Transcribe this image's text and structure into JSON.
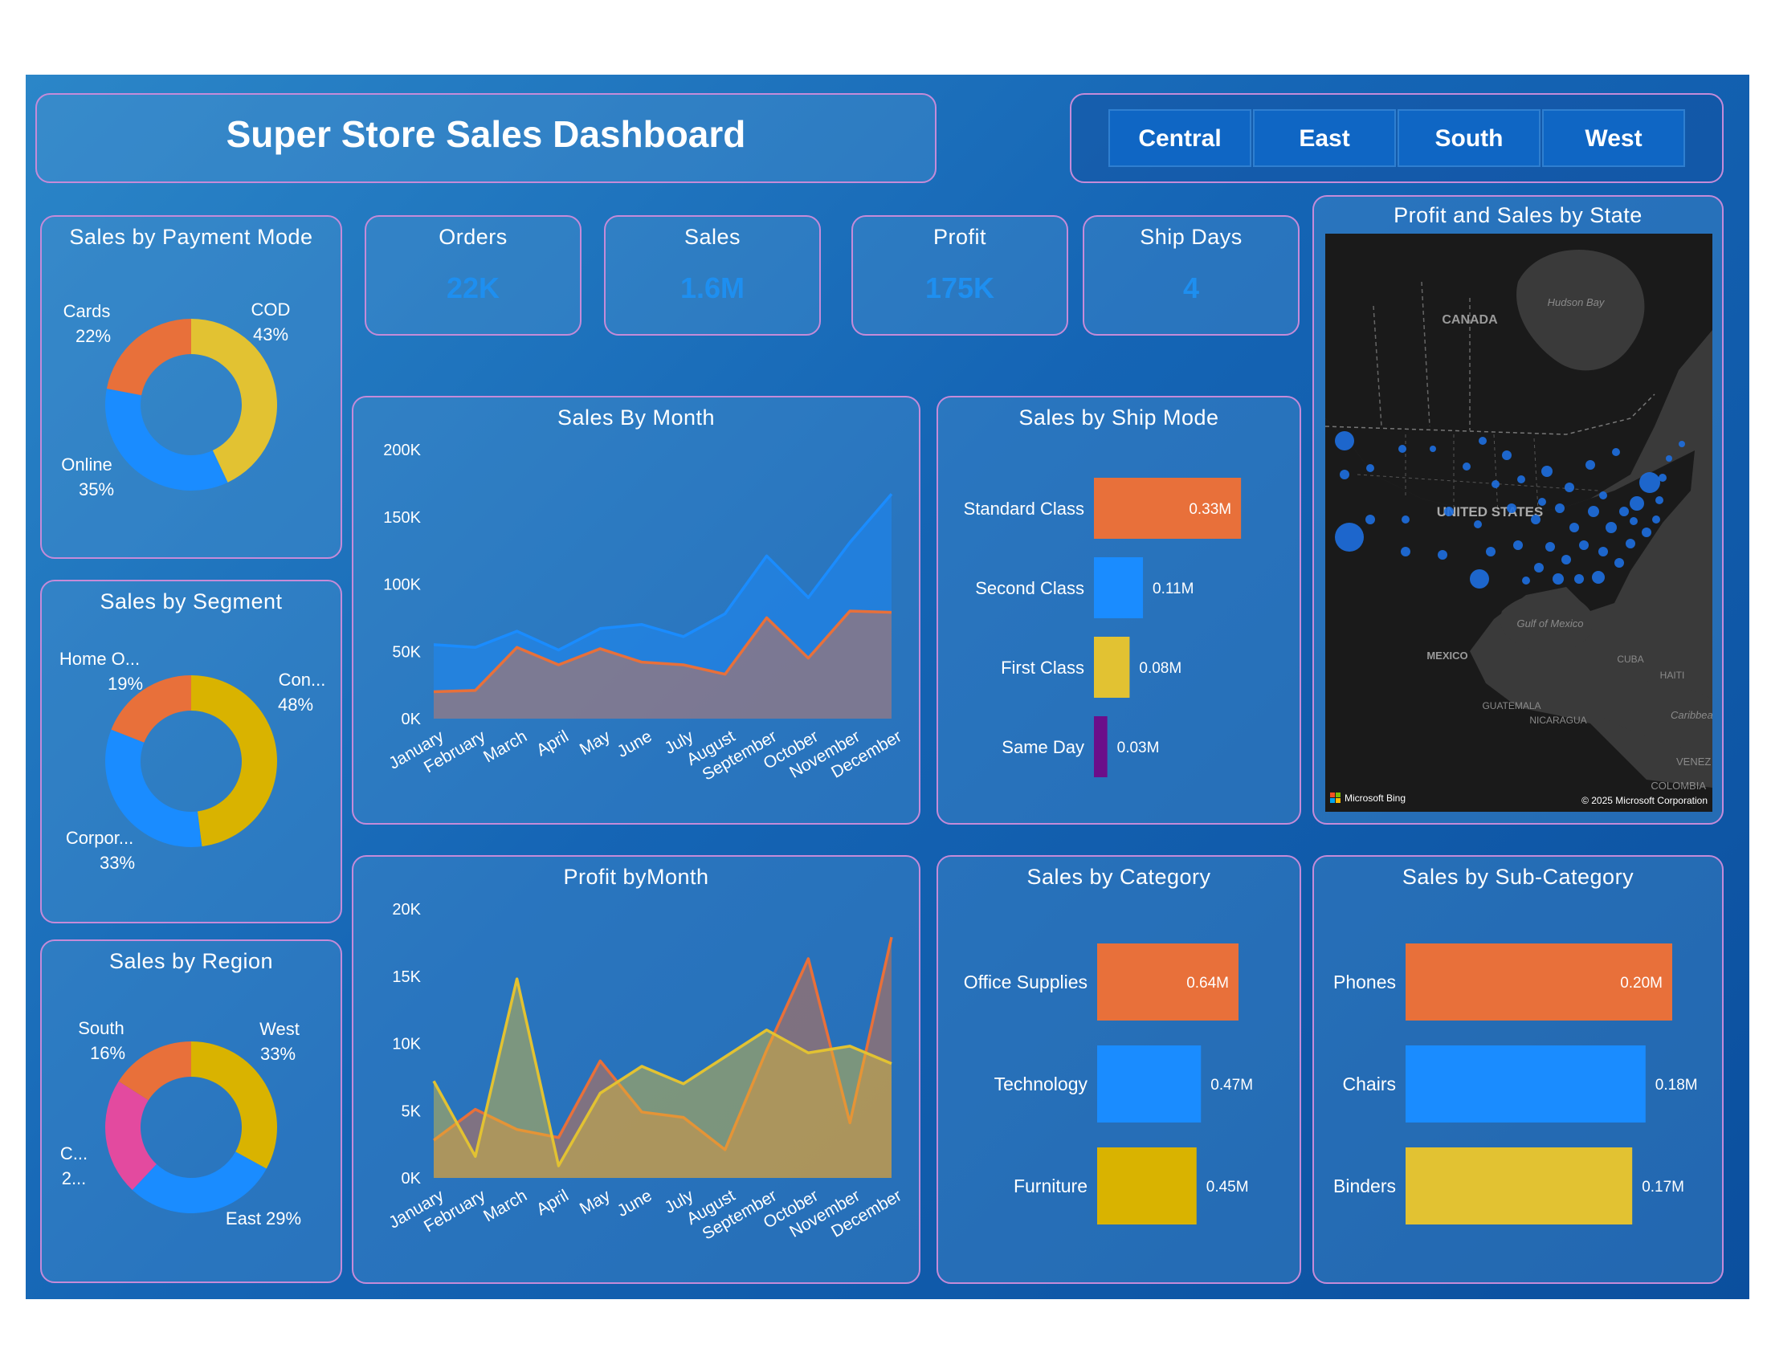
{
  "dashboard": {
    "title": "Super Store Sales Dashboard",
    "colors": {
      "orange": "#e8703a",
      "blue": "#1a8cff",
      "gold": "#d9b300",
      "yellow": "#e2c232",
      "pink": "#e34a9f",
      "purple": "#6b0e8a",
      "border": "#c58bd9"
    }
  },
  "slicer": {
    "regions": [
      "Central",
      "East",
      "South",
      "West"
    ]
  },
  "kpis": [
    {
      "label": "Orders",
      "value": "22K"
    },
    {
      "label": "Sales",
      "value": "1.6M"
    },
    {
      "label": "Profit",
      "value": "175K"
    },
    {
      "label": "Ship Days",
      "value": "4"
    }
  ],
  "payment_mode": {
    "title": "Sales by Payment Mode",
    "labels": [
      {
        "name": "COD",
        "pct": "43%"
      },
      {
        "name": "Online",
        "pct": "35%"
      },
      {
        "name": "Cards",
        "pct": "22%"
      }
    ]
  },
  "segment": {
    "title": "Sales by Segment",
    "labels": [
      {
        "name": "Con...",
        "pct": "48%"
      },
      {
        "name": "Corpor...",
        "pct": "33%"
      },
      {
        "name": "Home O...",
        "pct": "19%"
      }
    ]
  },
  "region": {
    "title": "Sales by Region",
    "labels": [
      {
        "name": "West",
        "pct": "33%"
      },
      {
        "name": "East 29%",
        "pct": ""
      },
      {
        "name": "C...",
        "pct": "2..."
      },
      {
        "name": "South",
        "pct": "16%"
      }
    ]
  },
  "sales_month": {
    "title": "Sales By Month"
  },
  "profit_month": {
    "title": "Profit byMonth"
  },
  "ship_mode": {
    "title": "Sales by Ship Mode"
  },
  "category": {
    "title": "Sales by Category"
  },
  "subcategory": {
    "title": "Sales by Sub-Category"
  },
  "map": {
    "title": "Profit and Sales by State",
    "labels": [
      "CANADA",
      "Hudson Bay",
      "UNITED STATES",
      "Gulf of Mexico",
      "MEXICO",
      "CUBA",
      "HAITI",
      "GUATEMALA",
      "NICARAGUA",
      "Caribbean Se",
      "VENEZ",
      "COLOMBIA"
    ],
    "bing": "Microsoft Bing",
    "copyright": "© 2025 Microsoft Corporation"
  },
  "chart_data": [
    {
      "type": "pie",
      "title": "Sales by Payment Mode",
      "donut": true,
      "slices": [
        {
          "name": "COD",
          "value": 43,
          "color": "#e2c232"
        },
        {
          "name": "Online",
          "value": 35,
          "color": "#1a8cff"
        },
        {
          "name": "Cards",
          "value": 22,
          "color": "#e8703a"
        }
      ]
    },
    {
      "type": "pie",
      "title": "Sales by Segment",
      "donut": true,
      "slices": [
        {
          "name": "Con...",
          "value": 48,
          "color": "#d9b300"
        },
        {
          "name": "Corpor...",
          "value": 33,
          "color": "#1a8cff"
        },
        {
          "name": "Home O...",
          "value": 19,
          "color": "#e8703a"
        }
      ]
    },
    {
      "type": "pie",
      "title": "Sales by Region",
      "donut": true,
      "slices": [
        {
          "name": "West",
          "value": 33,
          "color": "#d9b300"
        },
        {
          "name": "East",
          "value": 29,
          "color": "#1a8cff"
        },
        {
          "name": "C...",
          "value": 22,
          "color": "#e34a9f"
        },
        {
          "name": "South",
          "value": 16,
          "color": "#e8703a"
        }
      ]
    },
    {
      "type": "area",
      "title": "Sales By Month",
      "categories": [
        "January",
        "February",
        "March",
        "April",
        "May",
        "June",
        "July",
        "August",
        "September",
        "October",
        "November",
        "December"
      ],
      "ylim": [
        0,
        200000
      ],
      "yticks": [
        "0K",
        "50K",
        "100K",
        "150K",
        "200K"
      ],
      "series": [
        {
          "color": "#1a8cff",
          "values": [
            55000,
            53000,
            65000,
            51000,
            67000,
            70000,
            61000,
            78000,
            121000,
            90000,
            131000,
            167000
          ]
        },
        {
          "color": "#e8703a",
          "values": [
            20000,
            21000,
            53000,
            40000,
            52000,
            42000,
            40000,
            33000,
            75000,
            45000,
            80000,
            79000
          ]
        }
      ]
    },
    {
      "type": "area",
      "title": "Profit byMonth",
      "categories": [
        "January",
        "February",
        "March",
        "April",
        "May",
        "June",
        "July",
        "August",
        "September",
        "October",
        "November",
        "December"
      ],
      "ylim": [
        0,
        20000
      ],
      "yticks": [
        "0K",
        "5K",
        "10K",
        "15K",
        "20K"
      ],
      "series": [
        {
          "color": "#e8703a",
          "values": [
            2800,
            5100,
            3600,
            3000,
            8700,
            4900,
            4500,
            2100,
            9500,
            16300,
            4100,
            17900
          ]
        },
        {
          "color": "#e2c232",
          "values": [
            7200,
            1600,
            14800,
            900,
            6300,
            8300,
            7000,
            9000,
            11000,
            9300,
            9800,
            8500
          ]
        }
      ]
    },
    {
      "type": "bar",
      "title": "Sales by Ship Mode",
      "orientation": "horizontal",
      "categories": [
        "Standard Class",
        "Second Class",
        "First Class",
        "Same Day"
      ],
      "values": [
        0.33,
        0.11,
        0.08,
        0.03
      ],
      "labels": [
        "0.33M",
        "0.11M",
        "0.08M",
        "0.03M"
      ],
      "colors": [
        "#e8703a",
        "#1a8cff",
        "#e2c232",
        "#6b0e8a"
      ]
    },
    {
      "type": "bar",
      "title": "Sales by Category",
      "orientation": "horizontal",
      "categories": [
        "Office Supplies",
        "Technology",
        "Furniture"
      ],
      "values": [
        0.64,
        0.47,
        0.45
      ],
      "labels": [
        "0.64M",
        "0.47M",
        "0.45M"
      ],
      "colors": [
        "#e8703a",
        "#1a8cff",
        "#d9b300"
      ]
    },
    {
      "type": "bar",
      "title": "Sales by Sub-Category",
      "orientation": "horizontal",
      "categories": [
        "Phones",
        "Chairs",
        "Binders"
      ],
      "values": [
        0.2,
        0.18,
        0.17
      ],
      "labels": [
        "0.20M",
        "0.18M",
        "0.17M"
      ],
      "colors": [
        "#e8703a",
        "#1a8cff",
        "#e2c232"
      ]
    }
  ]
}
